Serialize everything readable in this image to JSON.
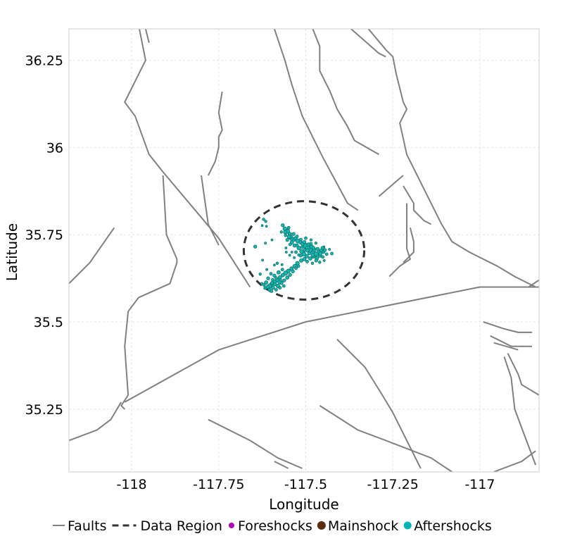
{
  "chart_data": {
    "type": "map",
    "xlabel": "Longitude",
    "ylabel": "Latitude",
    "xlim": [
      -118.18,
      -116.83
    ],
    "ylim": [
      35.07,
      36.34
    ],
    "xticks": [
      -118,
      -117.75,
      -117.5,
      -117.25,
      -117
    ],
    "xtick_labels": [
      "-118",
      "-117.75",
      "-117.5",
      "-117.25",
      "-117"
    ],
    "yticks": [
      35.25,
      35.5,
      35.75,
      36,
      36.25
    ],
    "ytick_labels": [
      "35.25",
      "35.5",
      "35.75",
      "36",
      "36.25"
    ],
    "grid": true,
    "legend_placement": "bottom",
    "legend": [
      {
        "label": "Faults",
        "kind": "line",
        "color": "#808080"
      },
      {
        "label": "Data Region",
        "kind": "dashed",
        "color": "#333333"
      },
      {
        "label": "Foreshocks",
        "kind": "point",
        "color": "#b000b0"
      },
      {
        "label": "Mainshock",
        "kind": "point",
        "color": "#5a2d0c"
      },
      {
        "label": "Aftershocks",
        "kind": "point",
        "color": "#00b4b4"
      }
    ],
    "colors": {
      "faults": "#808080",
      "region": "#333333",
      "aftershock_fill": "#14b8b0",
      "aftershock_edge": "#0a6e6a",
      "grid": "#e2e2e2"
    },
    "data_region": {
      "center": [
        -117.505,
        35.705
      ],
      "radius_lon": 0.173,
      "radius_lat": 0.141
    },
    "faults": [
      [
        [
          -117.98,
          36.35
        ],
        [
          -117.96,
          36.25
        ],
        [
          -118.02,
          36.13
        ],
        [
          -117.99,
          36.09
        ],
        [
          -117.95,
          35.98
        ],
        [
          -117.91,
          35.93
        ]
      ],
      [
        [
          -117.96,
          36.34
        ],
        [
          -117.95,
          36.3
        ]
      ],
      [
        [
          -118.18,
          35.61
        ],
        [
          -118.12,
          35.67
        ],
        [
          -118.05,
          35.77
        ]
      ],
      [
        [
          -117.91,
          35.93
        ],
        [
          -117.75,
          35.74
        ],
        [
          -117.66,
          35.6
        ]
      ],
      [
        [
          -117.91,
          35.92
        ],
        [
          -117.9,
          35.75
        ],
        [
          -117.87,
          35.68
        ],
        [
          -117.87,
          35.67
        ],
        [
          -117.89,
          35.61
        ],
        [
          -117.98,
          35.57
        ],
        [
          -118.01,
          35.53
        ],
        [
          -118.02,
          35.43
        ],
        [
          -118.01,
          35.29
        ],
        [
          -118.03,
          35.26
        ],
        [
          -118.02,
          35.25
        ]
      ],
      [
        [
          -117.8,
          35.92
        ],
        [
          -117.78,
          35.78
        ],
        [
          -117.75,
          35.72
        ]
      ],
      [
        [
          -117.74,
          36.16
        ],
        [
          -117.75,
          36.1
        ],
        [
          -117.74,
          36.05
        ],
        [
          -117.75,
          36.03
        ],
        [
          -117.75,
          36.0
        ],
        [
          -117.76,
          35.96
        ],
        [
          -117.78,
          35.92
        ]
      ],
      [
        [
          -118.02,
          35.27
        ],
        [
          -117.75,
          35.42
        ],
        [
          -117.5,
          35.5
        ],
        [
          -117.0,
          35.6
        ],
        [
          -116.83,
          35.6
        ]
      ],
      [
        [
          -118.18,
          35.16
        ],
        [
          -118.1,
          35.19
        ],
        [
          -118.06,
          35.22
        ],
        [
          -118.03,
          35.27
        ]
      ],
      [
        [
          -117.59,
          36.34
        ],
        [
          -117.56,
          36.25
        ],
        [
          -117.54,
          36.18
        ],
        [
          -117.51,
          36.09
        ],
        [
          -117.45,
          35.97
        ],
        [
          -117.38,
          35.84
        ],
        [
          -117.35,
          35.82
        ]
      ],
      [
        [
          -117.48,
          36.34
        ],
        [
          -117.46,
          36.29
        ],
        [
          -117.46,
          36.22
        ],
        [
          -117.43,
          36.16
        ],
        [
          -117.41,
          36.11
        ],
        [
          -117.38,
          36.06
        ],
        [
          -117.36,
          36.02
        ],
        [
          -117.29,
          35.98
        ]
      ],
      [
        [
          -117.37,
          36.34
        ],
        [
          -117.29,
          36.27
        ],
        [
          -117.27,
          36.26
        ]
      ],
      [
        [
          -117.32,
          36.34
        ],
        [
          -117.27,
          36.28
        ],
        [
          -117.25,
          36.26
        ],
        [
          -117.24,
          36.21
        ],
        [
          -117.22,
          36.13
        ],
        [
          -117.21,
          36.11
        ],
        [
          -117.23,
          36.07
        ],
        [
          -117.21,
          35.98
        ],
        [
          -117.16,
          35.88
        ],
        [
          -117.11,
          35.78
        ],
        [
          -117.08,
          35.73
        ],
        [
          -117.03,
          35.7
        ],
        [
          -116.95,
          35.66
        ],
        [
          -116.9,
          35.63
        ],
        [
          -116.84,
          35.6
        ]
      ],
      [
        [
          -117.22,
          35.92
        ],
        [
          -117.29,
          35.86
        ]
      ],
      [
        [
          -117.22,
          35.89
        ],
        [
          -117.19,
          35.84
        ],
        [
          -117.19,
          35.82
        ],
        [
          -117.16,
          35.79
        ],
        [
          -117.14,
          35.78
        ]
      ],
      [
        [
          -117.21,
          35.84
        ],
        [
          -117.21,
          35.71
        ],
        [
          -117.2,
          35.68
        ],
        [
          -117.23,
          35.66
        ],
        [
          -117.26,
          35.63
        ]
      ],
      [
        [
          -117.2,
          35.77
        ],
        [
          -117.19,
          35.73
        ],
        [
          -117.19,
          35.7
        ],
        [
          -117.22,
          35.67
        ]
      ],
      [
        [
          -116.86,
          35.6
        ],
        [
          -116.83,
          35.62
        ]
      ],
      [
        [
          -116.99,
          35.5
        ],
        [
          -116.93,
          35.48
        ],
        [
          -116.89,
          35.47
        ],
        [
          -116.85,
          35.47
        ]
      ],
      [
        [
          -116.97,
          35.46
        ],
        [
          -116.91,
          35.43
        ],
        [
          -116.88,
          35.43
        ],
        [
          -116.85,
          35.43
        ]
      ],
      [
        [
          -116.96,
          35.44
        ],
        [
          -116.89,
          35.42
        ]
      ],
      [
        [
          -116.92,
          35.41
        ],
        [
          -116.89,
          35.35
        ],
        [
          -116.88,
          35.32
        ],
        [
          -116.83,
          35.29
        ]
      ],
      [
        [
          -116.93,
          35.4
        ],
        [
          -116.91,
          35.34
        ],
        [
          -116.9,
          35.25
        ],
        [
          -116.87,
          35.17
        ],
        [
          -116.84,
          35.09
        ]
      ],
      [
        [
          -117.41,
          35.45
        ],
        [
          -117.33,
          35.37
        ],
        [
          -117.28,
          35.29
        ],
        [
          -117.25,
          35.24
        ],
        [
          -117.21,
          35.16
        ],
        [
          -117.17,
          35.08
        ]
      ],
      [
        [
          -117.46,
          35.26
        ],
        [
          -117.35,
          35.19
        ],
        [
          -117.27,
          35.16
        ],
        [
          -117.14,
          35.11
        ],
        [
          -117.08,
          35.07
        ]
      ],
      [
        [
          -117.78,
          35.22
        ],
        [
          -117.66,
          35.16
        ],
        [
          -117.58,
          35.11
        ],
        [
          -117.51,
          35.08
        ]
      ],
      [
        [
          -117.59,
          35.1
        ],
        [
          -117.55,
          35.08
        ]
      ],
      [
        [
          -116.96,
          35.07
        ],
        [
          -116.88,
          35.1
        ],
        [
          -116.84,
          35.13
        ]
      ]
    ],
    "aftershocks": [
      [
        -117.566,
        35.777,
        4.5
      ],
      [
        -117.56,
        35.767,
        5.5
      ],
      [
        -117.552,
        35.76,
        6
      ],
      [
        -117.546,
        35.752,
        5
      ],
      [
        -117.543,
        35.742,
        6
      ],
      [
        -117.539,
        35.736,
        5
      ],
      [
        -117.53,
        35.739,
        5.5
      ],
      [
        -117.523,
        35.732,
        6
      ],
      [
        -117.515,
        35.728,
        5
      ],
      [
        -117.508,
        35.724,
        6
      ],
      [
        -117.5,
        35.718,
        7
      ],
      [
        -117.494,
        35.712,
        6
      ],
      [
        -117.486,
        35.706,
        6.5
      ],
      [
        -117.478,
        35.7,
        5.5
      ],
      [
        -117.47,
        35.695,
        6
      ],
      [
        -117.462,
        35.701,
        5
      ],
      [
        -117.455,
        35.705,
        4.5
      ],
      [
        -117.449,
        35.7,
        4
      ],
      [
        -117.44,
        35.694,
        4
      ],
      [
        -117.476,
        35.707,
        5
      ],
      [
        -117.483,
        35.715,
        5.5
      ],
      [
        -117.492,
        35.722,
        5
      ],
      [
        -117.504,
        35.729,
        4.5
      ],
      [
        -117.514,
        35.736,
        4
      ],
      [
        -117.525,
        35.745,
        4
      ],
      [
        -117.535,
        35.752,
        4.5
      ],
      [
        -117.548,
        35.744,
        5
      ],
      [
        -117.54,
        35.728,
        5
      ],
      [
        -117.532,
        35.719,
        5
      ],
      [
        -117.52,
        35.712,
        5.5
      ],
      [
        -117.512,
        35.702,
        5.5
      ],
      [
        -117.505,
        35.694,
        6
      ],
      [
        -117.497,
        35.688,
        5
      ],
      [
        -117.487,
        35.682,
        5
      ],
      [
        -117.478,
        35.688,
        5.5
      ],
      [
        -117.468,
        35.683,
        5
      ],
      [
        -117.459,
        35.69,
        5
      ],
      [
        -117.451,
        35.686,
        4
      ],
      [
        -117.5,
        35.74,
        4
      ],
      [
        -117.485,
        35.735,
        3.5
      ],
      [
        -117.471,
        35.726,
        3.5
      ],
      [
        -117.559,
        35.757,
        5
      ],
      [
        -117.553,
        35.735,
        4.5
      ],
      [
        -117.545,
        35.722,
        4
      ],
      [
        -117.528,
        35.7,
        4
      ],
      [
        -117.515,
        35.69,
        4.5
      ],
      [
        -117.504,
        35.68,
        5
      ],
      [
        -117.496,
        35.673,
        4
      ],
      [
        -117.513,
        35.676,
        5
      ],
      [
        -117.524,
        35.668,
        5.5
      ],
      [
        -117.532,
        35.66,
        5
      ],
      [
        -117.541,
        35.653,
        5
      ],
      [
        -117.55,
        35.646,
        5.5
      ],
      [
        -117.558,
        35.64,
        6
      ],
      [
        -117.566,
        35.634,
        5
      ],
      [
        -117.574,
        35.628,
        5
      ],
      [
        -117.582,
        35.62,
        5.5
      ],
      [
        -117.59,
        35.614,
        6
      ],
      [
        -117.598,
        35.608,
        5.5
      ],
      [
        -117.604,
        35.603,
        6
      ],
      [
        -117.61,
        35.6,
        5
      ],
      [
        -117.594,
        35.598,
        5
      ],
      [
        -117.58,
        35.603,
        5.5
      ],
      [
        -117.57,
        35.612,
        5
      ],
      [
        -117.562,
        35.619,
        4.5
      ],
      [
        -117.553,
        35.627,
        5
      ],
      [
        -117.545,
        35.635,
        4.5
      ],
      [
        -117.537,
        35.645,
        4.5
      ],
      [
        -117.528,
        35.654,
        4
      ],
      [
        -117.521,
        35.66,
        4
      ],
      [
        -117.6,
        35.638,
        4
      ],
      [
        -117.59,
        35.633,
        4.5
      ],
      [
        -117.578,
        35.642,
        5
      ],
      [
        -117.567,
        35.65,
        4
      ],
      [
        -117.608,
        35.625,
        4.5
      ],
      [
        -117.614,
        35.613,
        5
      ],
      [
        -117.62,
        35.606,
        4
      ],
      [
        -117.626,
        35.61,
        3.5
      ],
      [
        -117.604,
        35.592,
        4.5
      ],
      [
        -117.598,
        35.588,
        4
      ],
      [
        -117.585,
        35.592,
        4
      ],
      [
        -117.574,
        35.598,
        4
      ],
      [
        -117.563,
        35.603,
        4
      ],
      [
        -117.573,
        35.62,
        4
      ],
      [
        -117.585,
        35.626,
        4
      ],
      [
        -117.595,
        35.621,
        4
      ],
      [
        -117.617,
        35.597,
        4
      ],
      [
        -117.631,
        35.637,
        3.5
      ],
      [
        -117.612,
        35.65,
        3
      ],
      [
        -117.624,
        35.677,
        3
      ],
      [
        -117.59,
        35.663,
        3
      ],
      [
        -117.616,
        35.726,
        3
      ],
      [
        -117.597,
        35.735,
        3
      ],
      [
        -117.645,
        35.716,
        4.5
      ],
      [
        -117.625,
        35.776,
        3
      ],
      [
        -117.613,
        35.774,
        3
      ],
      [
        -117.615,
        35.788,
        3.5
      ],
      [
        -117.621,
        35.794,
        3.5
      ],
      [
        -117.556,
        35.7,
        3
      ],
      [
        -117.448,
        35.715,
        3
      ],
      [
        -117.432,
        35.708,
        3
      ],
      [
        -117.425,
        35.696,
        4
      ],
      [
        -117.447,
        35.676,
        3
      ],
      [
        -117.46,
        35.671,
        3.5
      ],
      [
        -117.481,
        35.668,
        3.5
      ],
      [
        -117.568,
        35.664,
        3
      ],
      [
        -117.546,
        35.691,
        3
      ],
      [
        -117.533,
        35.684,
        3
      ],
      [
        -117.52,
        35.692,
        3.5
      ],
      [
        -117.582,
        35.668,
        3.5
      ],
      [
        -117.557,
        35.712,
        3
      ],
      [
        -117.54,
        35.7,
        3
      ],
      [
        -117.503,
        35.706,
        4.5
      ],
      [
        -117.478,
        35.712,
        4.5
      ],
      [
        -117.466,
        35.709,
        5
      ],
      [
        -117.458,
        35.696,
        5
      ],
      [
        -117.47,
        35.676,
        4.5
      ],
      [
        -117.49,
        35.697,
        4.5
      ],
      [
        -117.51,
        35.714,
        4
      ],
      [
        -117.525,
        35.72,
        4
      ],
      [
        -117.535,
        35.734,
        4
      ],
      [
        -117.549,
        35.77,
        4
      ],
      [
        -117.558,
        35.748,
        4
      ],
      [
        -117.57,
        35.758,
        3.5
      ],
      [
        -117.485,
        35.724,
        4
      ],
      [
        -117.495,
        35.705,
        5
      ],
      [
        -117.452,
        35.712,
        4.5
      ],
      [
        -117.445,
        35.706,
        4.5
      ],
      [
        -117.48,
        35.692,
        5
      ],
      [
        -117.597,
        35.612,
        4.5
      ],
      [
        -117.588,
        35.608,
        4.5
      ],
      [
        -117.576,
        35.614,
        4.5
      ]
    ]
  }
}
